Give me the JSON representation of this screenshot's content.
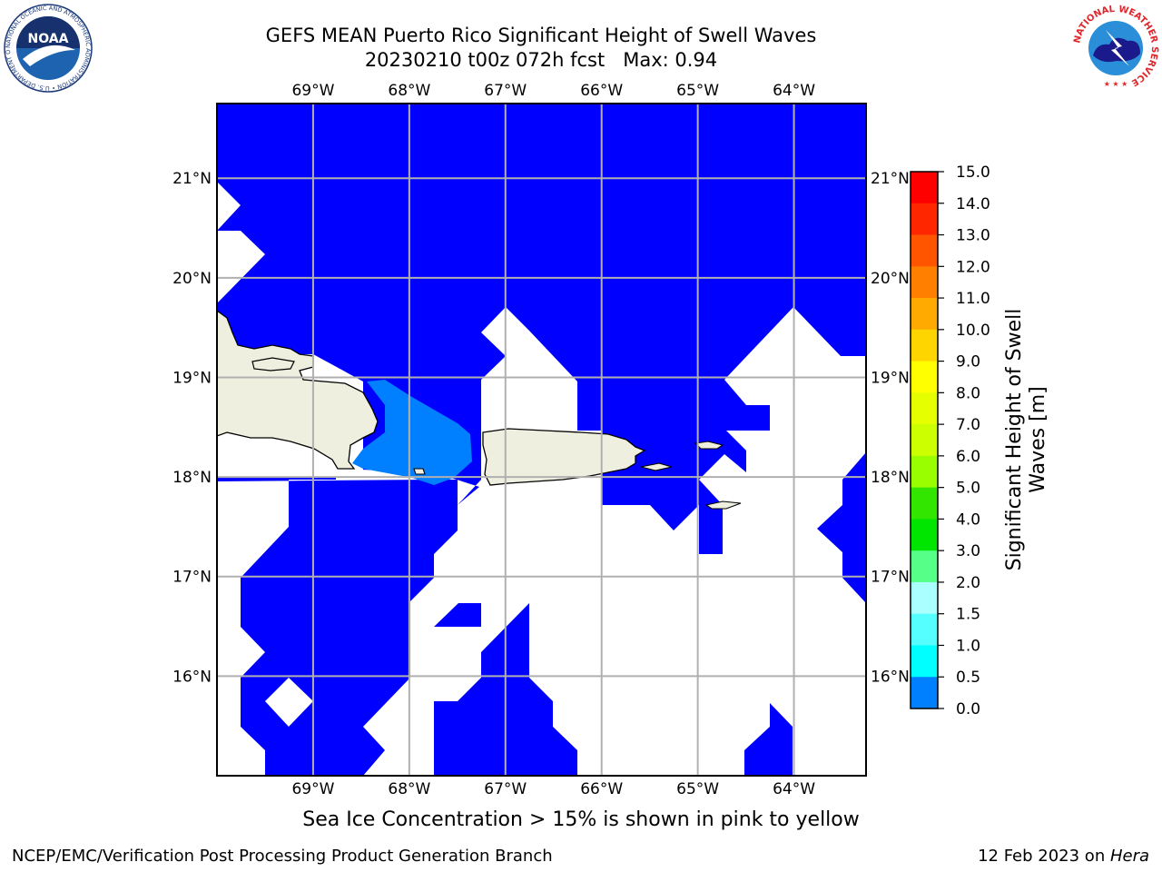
{
  "header": {
    "title_line1": "GEFS MEAN Puerto Rico Significant Height of Swell Waves",
    "title_line2": "20230210 t00z 072h fcst   Max: 0.94"
  },
  "map": {
    "lon_labels": [
      "69°W",
      "68°W",
      "67°W",
      "66°W",
      "65°W",
      "64°W"
    ],
    "lat_labels": [
      "21°N",
      "20°N",
      "19°N",
      "18°N",
      "17°N",
      "16°N"
    ],
    "lon_values": [
      -69,
      -68,
      -67,
      -66,
      -65,
      -64
    ],
    "lat_values": [
      21,
      20,
      19,
      18,
      17,
      16
    ],
    "extent": {
      "lon_min": -70.0,
      "lon_max": -63.25,
      "lat_min": 15.0,
      "lat_max": 21.75
    },
    "grid": true,
    "colors": {
      "swell_0_0.5": "#0000ff",
      "swell_0.5_1.0": "#0080ff",
      "land": "#efefdf",
      "no_data": "#ffffff"
    }
  },
  "colorbar": {
    "label": "Significant Height of Swell\nWaves [m]",
    "ticks": [
      "15.0",
      "14.0",
      "13.0",
      "12.0",
      "11.0",
      "10.0",
      "9.0",
      "8.0",
      "7.0",
      "6.0",
      "5.0",
      "4.0",
      "3.0",
      "2.0",
      "1.5",
      "1.0",
      "0.5",
      "0.0"
    ],
    "colors": [
      "#ff0000",
      "#ff2600",
      "#ff5500",
      "#ff8000",
      "#ffaa00",
      "#ffd500",
      "#ffff00",
      "#e5ff00",
      "#ccff00",
      "#99ff00",
      "#33e600",
      "#00e600",
      "#55ff88",
      "#aaffff",
      "#55ffff",
      "#00ffff",
      "#0080ff",
      "#0000ff"
    ]
  },
  "footer": {
    "ice_note": "Sea Ice Concentration > 15% is shown in pink to yellow",
    "left": "NCEP/EMC/Verification Post Processing Product Generation Branch",
    "right_date": "12 Feb 2023 on ",
    "right_host": "Hera"
  },
  "logos": {
    "noaa_text": "NOAA",
    "noaa_ring": "NATIONAL OCEANIC AND ATMOSPHERIC ADMINISTRATION • U.S. DEPARTMENT OF COMMERCE",
    "nws_ring": "NATIONAL WEATHER SERVICE"
  }
}
